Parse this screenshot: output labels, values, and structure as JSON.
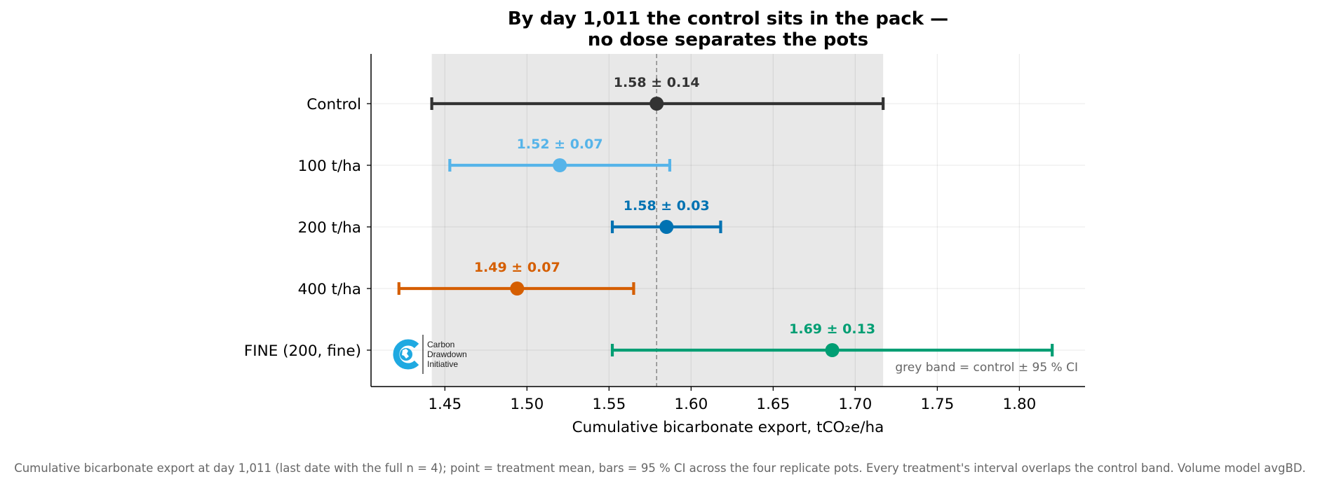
{
  "chart_data": {
    "type": "scatter",
    "title_lines": [
      "By day 1,011 the control sits in the pack —",
      "no dose separates the pots"
    ],
    "xlabel": "Cumulative bicarbonate export, tCO₂e/ha",
    "ylabel": "",
    "xlim": [
      1.405,
      1.84
    ],
    "xticks": [
      1.45,
      1.5,
      1.55,
      1.6,
      1.65,
      1.7,
      1.75,
      1.8
    ],
    "xtick_labels": [
      "1.45",
      "1.50",
      "1.55",
      "1.60",
      "1.65",
      "1.70",
      "1.75",
      "1.80"
    ],
    "grid": true,
    "control_band": {
      "low": 1.442,
      "high": 1.717,
      "center": 1.579,
      "color": "#e8e8e8"
    },
    "band_note": "grey band = control ± 95 % CI",
    "series": [
      {
        "name": "Control",
        "mean": 1.579,
        "low": 1.442,
        "high": 1.717,
        "label": "1.58 ± 0.14",
        "color": "#333333"
      },
      {
        "name": "100 t/ha",
        "mean": 1.52,
        "low": 1.453,
        "high": 1.587,
        "label": "1.52 ± 0.07",
        "color": "#56b4e9"
      },
      {
        "name": "200 t/ha",
        "mean": 1.585,
        "low": 1.552,
        "high": 1.618,
        "label": "1.58 ± 0.03",
        "color": "#0072b2"
      },
      {
        "name": "400 t/ha",
        "mean": 1.494,
        "low": 1.422,
        "high": 1.565,
        "label": "1.49 ± 0.07",
        "color": "#d55e00"
      },
      {
        "name": "FINE (200, fine)",
        "mean": 1.686,
        "low": 1.552,
        "high": 1.82,
        "label": "1.69 ± 0.13",
        "color": "#009e73"
      }
    ]
  },
  "logo": {
    "icon": "carbon-drawdown-globe-icon",
    "lines": [
      "Carbon",
      "Drawdown",
      "Initiative"
    ],
    "color": "#1fa9e1"
  },
  "caption": "Cumulative bicarbonate export at day 1,011 (last date with the full n = 4); point = treatment mean, bars = 95 % CI across the four replicate pots. Every treatment's interval overlaps the control band. Volume model avgBD."
}
